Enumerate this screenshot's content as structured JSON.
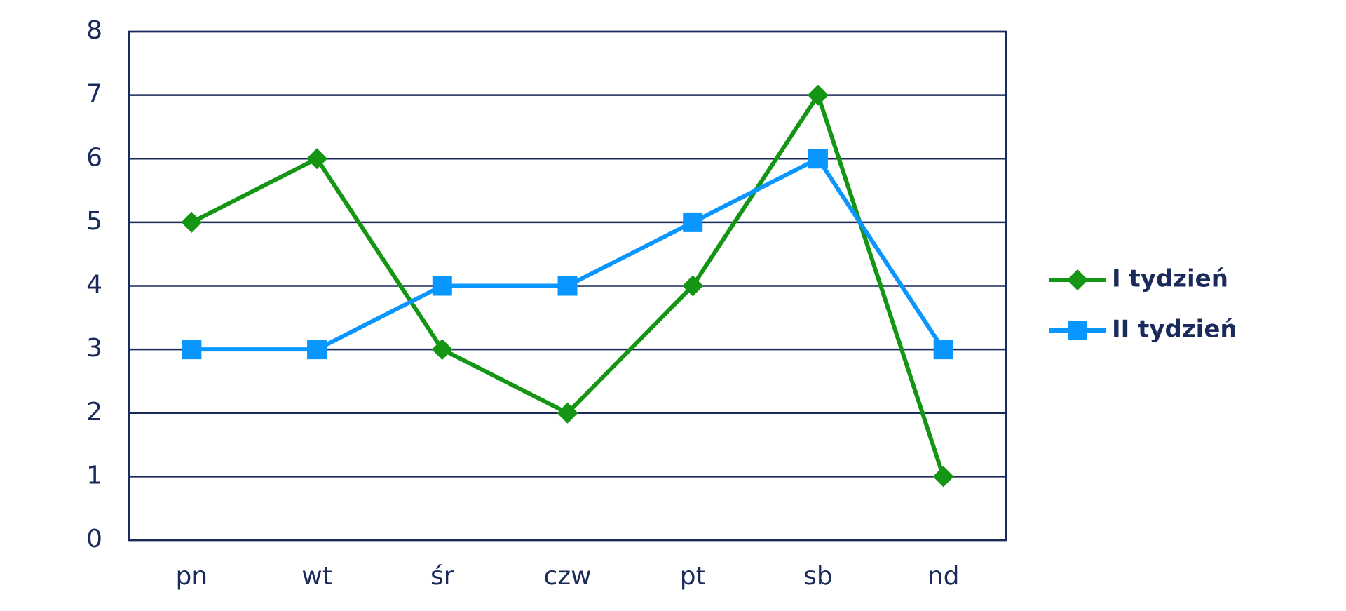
{
  "chart_data": {
    "type": "line",
    "categories": [
      "pn",
      "wt",
      "śr",
      "czw",
      "pt",
      "sb",
      "nd"
    ],
    "series": [
      {
        "name": "I tydzień",
        "color": "#149614",
        "marker": "diamond",
        "values": [
          5,
          6,
          3,
          2,
          4,
          7,
          1
        ]
      },
      {
        "name": "II tydzień",
        "color": "#0a96ff",
        "marker": "square",
        "values": [
          3,
          3,
          4,
          4,
          5,
          6,
          3
        ]
      }
    ],
    "ylim": [
      0,
      8
    ],
    "yticks": [
      0,
      1,
      2,
      3,
      4,
      5,
      6,
      7,
      8
    ],
    "grid": true,
    "legend": "right"
  }
}
